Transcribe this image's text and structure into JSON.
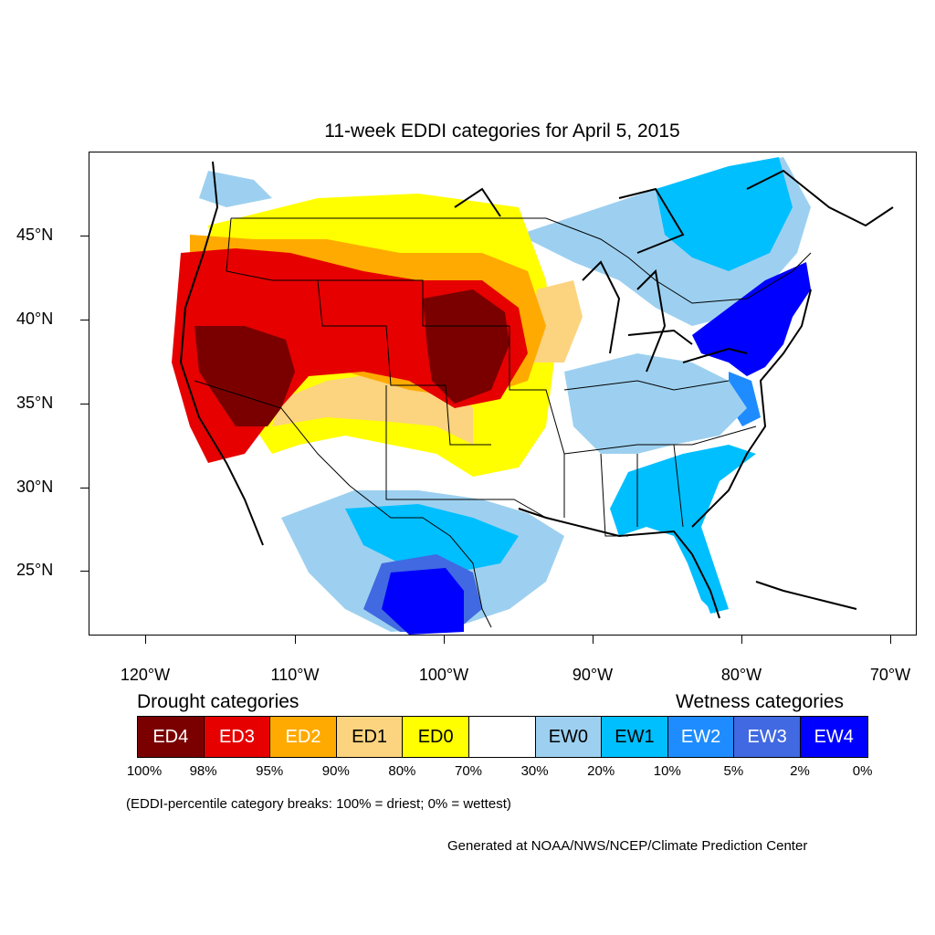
{
  "title": "11-week EDDI categories for April 5, 2015",
  "map": {
    "lat_labels": [
      "45°N",
      "40°N",
      "35°N",
      "30°N",
      "25°N"
    ],
    "lon_labels": [
      "120°W",
      "110°W",
      "100°W",
      "90°W",
      "80°W",
      "70°W"
    ]
  },
  "legend": {
    "drought_heading": "Drought categories",
    "wetness_heading": "Wetness categories",
    "categories": [
      {
        "label": "ED4",
        "color": "#7a0000",
        "text_color": "#ffffff"
      },
      {
        "label": "ED3",
        "color": "#e60000",
        "text_color": "#ffffff"
      },
      {
        "label": "ED2",
        "color": "#ffaa00",
        "text_color": "#ffffff"
      },
      {
        "label": "ED1",
        "color": "#fcd37f",
        "text_color": "#000000"
      },
      {
        "label": "ED0",
        "color": "#ffff00",
        "text_color": "#000000"
      },
      {
        "label": "",
        "color": "#ffffff",
        "text_color": "#000000"
      },
      {
        "label": "EW0",
        "color": "#9dd0f0",
        "text_color": "#000000"
      },
      {
        "label": "EW1",
        "color": "#00bfff",
        "text_color": "#000000"
      },
      {
        "label": "EW2",
        "color": "#1e8cff",
        "text_color": "#ffffff"
      },
      {
        "label": "EW3",
        "color": "#4169e1",
        "text_color": "#ffffff"
      },
      {
        "label": "EW4",
        "color": "#0000ff",
        "text_color": "#ffffff"
      }
    ],
    "breaks": [
      "100%",
      "98%",
      "95%",
      "90%",
      "80%",
      "70%",
      "30%",
      "20%",
      "10%",
      "5%",
      "2%",
      "0%"
    ],
    "note": "(EDDI-percentile category breaks: 100% = driest; 0% = wettest)"
  },
  "credit": "Generated at NOAA/NWS/NCEP/Climate Prediction Center"
}
